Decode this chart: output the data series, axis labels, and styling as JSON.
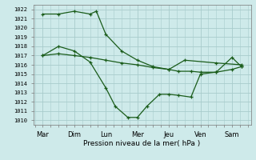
{
  "xlabel": "Pression niveau de la mer( hPa )",
  "ylim": [
    1009.5,
    1022.5
  ],
  "yticks": [
    1010,
    1011,
    1012,
    1013,
    1014,
    1015,
    1016,
    1017,
    1018,
    1019,
    1020,
    1021,
    1022
  ],
  "x_labels": [
    "Mar",
    "Dim",
    "Lun",
    "Mer",
    "Jeu",
    "Ven",
    "Sam"
  ],
  "x_positions": [
    0,
    1,
    2,
    3,
    4,
    5,
    6
  ],
  "xlim": [
    -0.3,
    6.6
  ],
  "background_color": "#ceeaea",
  "grid_color": "#a8cccc",
  "line_color": "#1a5c1a",
  "series_upper_x": [
    0.0,
    0.5,
    1.0,
    1.5,
    1.7,
    2.0,
    2.5,
    3.0,
    3.5,
    4.0,
    4.5,
    5.5,
    6.3
  ],
  "series_upper_y": [
    1021.5,
    1021.5,
    1021.8,
    1021.5,
    1021.8,
    1019.3,
    1017.5,
    1016.5,
    1015.8,
    1015.5,
    1016.5,
    1016.2,
    1016.0
  ],
  "series_mid_x": [
    0.0,
    0.5,
    1.0,
    1.5,
    2.0,
    2.5,
    3.0,
    3.5,
    4.0,
    4.3,
    4.7,
    5.0,
    5.5,
    6.0,
    6.3
  ],
  "series_mid_y": [
    1017.0,
    1017.2,
    1017.0,
    1016.8,
    1016.5,
    1016.2,
    1016.0,
    1015.7,
    1015.5,
    1015.3,
    1015.3,
    1015.2,
    1015.2,
    1015.5,
    1015.8
  ],
  "series_low_x": [
    0.0,
    0.5,
    1.0,
    1.5,
    2.0,
    2.3,
    2.7,
    3.0,
    3.3,
    3.7,
    4.0,
    4.3,
    4.7,
    5.0,
    5.5,
    6.0,
    6.3
  ],
  "series_low_y": [
    1017.0,
    1018.0,
    1017.5,
    1016.3,
    1013.5,
    1011.5,
    1010.3,
    1010.3,
    1011.5,
    1012.8,
    1012.8,
    1012.7,
    1012.5,
    1015.0,
    1015.2,
    1016.8,
    1015.8
  ],
  "marker": "+",
  "markersize": 3,
  "linewidth": 0.9
}
